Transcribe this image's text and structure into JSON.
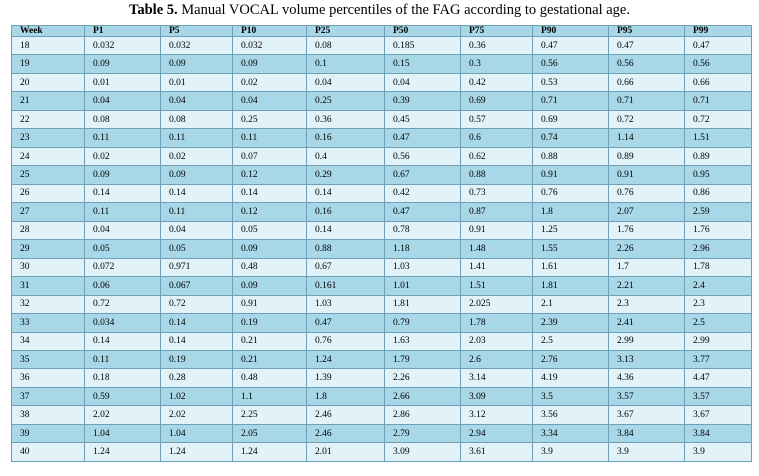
{
  "caption": {
    "prefix": "Table 5.",
    "text": " Manual VOCAL volume percentiles of the FAG according to gestational age."
  },
  "table": {
    "headers": [
      "Week",
      "P1",
      "P5",
      "P10",
      "P25",
      "P50",
      "P75",
      "P90",
      "P95",
      "P99"
    ],
    "rows": [
      [
        "18",
        "0.032",
        "0.032",
        "0.032",
        "0.08",
        "0.185",
        "0.36",
        "0.47",
        "0.47",
        "0.47"
      ],
      [
        "19",
        "0.09",
        "0.09",
        "0.09",
        "0.1",
        "0.15",
        "0.3",
        "0.56",
        "0.56",
        "0.56"
      ],
      [
        "20",
        "0.01",
        "0.01",
        "0.02",
        "0.04",
        "0.04",
        "0.42",
        "0.53",
        "0.66",
        "0.66"
      ],
      [
        "21",
        "0.04",
        "0.04",
        "0.04",
        "0.25",
        "0.39",
        "0.69",
        "0.71",
        "0.71",
        "0.71"
      ],
      [
        "22",
        "0.08",
        "0.08",
        "0.25",
        "0.36",
        "0.45",
        "0.57",
        "0.69",
        "0.72",
        "0.72"
      ],
      [
        "23",
        "0.11",
        "0.11",
        "0.11",
        "0.16",
        "0.47",
        "0.6",
        "0.74",
        "1.14",
        "1.51"
      ],
      [
        "24",
        "0.02",
        "0.02",
        "0.07",
        "0.4",
        "0.56",
        "0.62",
        "0.88",
        "0.89",
        "0.89"
      ],
      [
        "25",
        "0.09",
        "0.09",
        "0.12",
        "0.29",
        "0.67",
        "0.88",
        "0.91",
        "0.91",
        "0.95"
      ],
      [
        "26",
        "0.14",
        "0.14",
        "0.14",
        "0.14",
        "0.42",
        "0.73",
        "0.76",
        "0.76",
        "0.86"
      ],
      [
        "27",
        "0.11",
        "0.11",
        "0.12",
        "0.16",
        "0.47",
        "0.87",
        "1.8",
        "2.07",
        "2.59"
      ],
      [
        "28",
        "0.04",
        "0.04",
        "0.05",
        "0.14",
        "0.78",
        "0.91",
        "1.25",
        "1.76",
        "1.76"
      ],
      [
        "29",
        "0.05",
        "0.05",
        "0.09",
        "0.88",
        "1.18",
        "1.48",
        "1.55",
        "2.26",
        "2.96"
      ],
      [
        "30",
        "0.072",
        "0.971",
        "0.48",
        "0.67",
        "1.03",
        "1.41",
        "1.61",
        "1.7",
        "1.78"
      ],
      [
        "31",
        "0.06",
        "0.067",
        "0.09",
        "0.161",
        "1.01",
        "1.51",
        "1.81",
        "2.21",
        "2.4"
      ],
      [
        "32",
        "0.72",
        "0.72",
        "0.91",
        "1.03",
        "1.81",
        "2.025",
        "2.1",
        "2.3",
        "2.3"
      ],
      [
        "33",
        "0.034",
        "0.14",
        "0.19",
        "0.47",
        "0.79",
        "1.78",
        "2.39",
        "2.41",
        "2.5"
      ],
      [
        "34",
        "0.14",
        "0.14",
        "0.21",
        "0.76",
        "1.63",
        "2.03",
        "2.5",
        "2.99",
        "2.99"
      ],
      [
        "35",
        "0.11",
        "0.19",
        "0.21",
        "1.24",
        "1.79",
        "2.6",
        "2.76",
        "3.13",
        "3.77"
      ],
      [
        "36",
        "0.18",
        "0.28",
        "0.48",
        "1.39",
        "2.26",
        "3.14",
        "4.19",
        "4.36",
        "4.47"
      ],
      [
        "37",
        "0.59",
        "1.02",
        "1.1",
        "1.8",
        "2.66",
        "3.09",
        "3.5",
        "3.57",
        "3.57"
      ],
      [
        "38",
        "2.02",
        "2.02",
        "2.25",
        "2.46",
        "2.86",
        "3.12",
        "3.56",
        "3.67",
        "3.67"
      ],
      [
        "39",
        "1.04",
        "1.04",
        "2.05",
        "2.46",
        "2.79",
        "2.94",
        "3.34",
        "3.84",
        "3.84"
      ],
      [
        "40",
        "1.24",
        "1.24",
        "1.24",
        "2.01",
        "3.09",
        "3.61",
        "3.9",
        "3.9",
        "3.9"
      ]
    ]
  }
}
